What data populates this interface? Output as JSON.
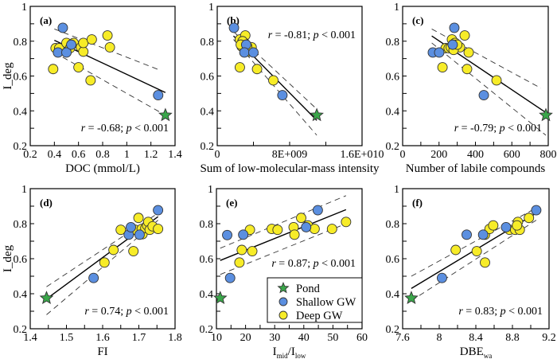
{
  "colors": {
    "pond": "#3aa64a",
    "shallow": "#5b8fe0",
    "deep": "#f7ec28"
  },
  "legend": {
    "placement": "inside panel (e), bottom-right",
    "entries": [
      {
        "key": "pond",
        "label": "Pond",
        "marker": "star"
      },
      {
        "key": "shallow",
        "label": "Shallow GW",
        "marker": "circle"
      },
      {
        "key": "deep",
        "label": "Deep GW",
        "marker": "circle"
      }
    ]
  },
  "chart_data": [
    {
      "type": "scatter",
      "panel_label": "(a)",
      "ylabel": "I_deg",
      "xlabel": "DOC (mmol/L)",
      "xlim": [
        0.2,
        1.4
      ],
      "ylim": [
        0.2,
        1.0
      ],
      "xticks": [
        0.2,
        0.4,
        0.6,
        0.8,
        1,
        1.2,
        1.4
      ],
      "xtick_labels": [
        "0.2",
        "0.4",
        "0.6",
        "0.8",
        "1",
        "1.2",
        "1.4"
      ],
      "yticks": [
        0.2,
        0.4,
        0.6,
        0.8,
        1
      ],
      "ytick_labels": [
        "0.2",
        "0.4",
        "0.6",
        "0.8",
        "1"
      ],
      "stat": {
        "r": "-0.68",
        "p": "0.001",
        "placement": "bottom-right"
      },
      "fit": {
        "x": [
          0.4,
          1.32
        ],
        "y": [
          0.805,
          0.505
        ]
      },
      "ci_upper": {
        "x": [
          0.4,
          1.27
        ],
        "y": [
          0.87,
          0.635
        ]
      },
      "ci_lower": {
        "x": [
          0.4,
          1.32
        ],
        "y": [
          0.735,
          0.375
        ]
      },
      "series": [
        {
          "name": "Pond",
          "key": "pond",
          "points": [
            [
              1.32,
              0.375
            ]
          ]
        },
        {
          "name": "Shallow GW",
          "key": "shallow",
          "points": [
            [
              0.47,
              0.877
            ],
            [
              0.43,
              0.735
            ],
            [
              0.5,
              0.735
            ],
            [
              0.54,
              0.78
            ],
            [
              1.26,
              0.49
            ]
          ]
        },
        {
          "name": "Deep GW",
          "key": "deep",
          "points": [
            [
              0.39,
              0.64
            ],
            [
              0.41,
              0.76
            ],
            [
              0.44,
              0.76
            ],
            [
              0.5,
              0.79
            ],
            [
              0.53,
              0.76
            ],
            [
              0.56,
              0.79
            ],
            [
              0.6,
              0.65
            ],
            [
              0.62,
              0.765
            ],
            [
              0.64,
              0.74
            ],
            [
              0.64,
              0.79
            ],
            [
              0.7,
              0.575
            ],
            [
              0.71,
              0.81
            ],
            [
              0.84,
              0.833
            ],
            [
              0.86,
              0.765
            ]
          ]
        }
      ]
    },
    {
      "type": "scatter",
      "panel_label": "(b)",
      "ylabel": "",
      "xlabel": "Sum of low-molecular-mass intensity",
      "xlim": [
        0,
        16000000000
      ],
      "ylim": [
        0.2,
        1.0
      ],
      "xticks": [
        0,
        4000000000,
        8000000000,
        12000000000,
        16000000000
      ],
      "xtick_labels": [
        "0",
        "",
        "8E+009",
        "",
        "1.6E+010"
      ],
      "yticks": [
        0.2,
        0.4,
        0.6,
        0.8,
        1
      ],
      "ytick_labels": [
        "0.2",
        "0.4",
        "0.6",
        "0.8",
        "1"
      ],
      "stat": {
        "r": "-0.81",
        "p": "0.001",
        "placement": "top-right"
      },
      "fit": {
        "x": [
          1800000000,
          11000000000
        ],
        "y": [
          0.83,
          0.345
        ]
      },
      "ci_upper": {
        "x": [
          1800000000,
          11000000000
        ],
        "y": [
          0.855,
          0.41
        ]
      },
      "ci_lower": {
        "x": [
          1800000000,
          11000000000
        ],
        "y": [
          0.81,
          0.26
        ]
      },
      "series": [
        {
          "name": "Pond",
          "key": "pond",
          "points": [
            [
              11000000000,
              0.375
            ]
          ]
        },
        {
          "name": "Shallow GW",
          "key": "shallow",
          "points": [
            [
              1850000000,
              0.877
            ],
            [
              3200000000,
              0.78
            ],
            [
              3000000000,
              0.735
            ],
            [
              4000000000,
              0.735
            ],
            [
              7200000000,
              0.49
            ]
          ]
        },
        {
          "name": "Deep GW",
          "key": "deep",
          "points": [
            [
              2500000000,
              0.81
            ],
            [
              3100000000,
              0.833
            ],
            [
              2700000000,
              0.77
            ],
            [
              3000000000,
              0.79
            ],
            [
              3200000000,
              0.76
            ],
            [
              3400000000,
              0.75
            ],
            [
              3800000000,
              0.765
            ],
            [
              2500000000,
              0.65
            ],
            [
              4400000000,
              0.64
            ],
            [
              6200000000,
              0.575
            ],
            [
              2800000000,
              0.8
            ],
            [
              3500000000,
              0.74
            ],
            [
              2600000000,
              0.78
            ],
            [
              3300000000,
              0.77
            ]
          ]
        }
      ]
    },
    {
      "type": "scatter",
      "panel_label": "(c)",
      "ylabel": "",
      "xlabel": "Number of labile compounds",
      "xlim": [
        0,
        800
      ],
      "ylim": [
        0.2,
        1.0
      ],
      "xticks": [
        0,
        100,
        200,
        300,
        400,
        500,
        600,
        700,
        800
      ],
      "xtick_labels": [
        "0",
        "",
        "200",
        "",
        "400",
        "",
        "600",
        "",
        "800"
      ],
      "yticks": [
        0.2,
        0.4,
        0.6,
        0.8,
        1
      ],
      "ytick_labels": [
        "0.2",
        "0.4",
        "0.6",
        "0.8",
        "1"
      ],
      "stat": {
        "r": "-0.79",
        "p": "0.001",
        "placement": "bottom-right"
      },
      "fit": {
        "x": [
          160,
          787
        ],
        "y": [
          0.83,
          0.39
        ]
      },
      "ci_upper": {
        "x": [
          160,
          760
        ],
        "y": [
          0.87,
          0.53
        ]
      },
      "ci_lower": {
        "x": [
          160,
          787
        ],
        "y": [
          0.79,
          0.26
        ]
      },
      "series": [
        {
          "name": "Pond",
          "key": "pond",
          "points": [
            [
              787,
              0.375
            ]
          ]
        },
        {
          "name": "Shallow GW",
          "key": "shallow",
          "points": [
            [
              284,
              0.877
            ],
            [
              166,
              0.735
            ],
            [
              201,
              0.735
            ],
            [
              275,
              0.78
            ],
            [
              446,
              0.49
            ]
          ]
        },
        {
          "name": "Deep GW",
          "key": "deep",
          "points": [
            [
              271,
              0.81
            ],
            [
              341,
              0.833
            ],
            [
              219,
              0.65
            ],
            [
              354,
              0.64
            ],
            [
              363,
              0.735
            ],
            [
              516,
              0.575
            ],
            [
              236,
              0.76
            ],
            [
              253,
              0.76
            ],
            [
              288,
              0.79
            ],
            [
              297,
              0.77
            ],
            [
              315,
              0.765
            ],
            [
              265,
              0.765
            ],
            [
              280,
              0.75
            ],
            [
              300,
              0.78
            ]
          ]
        }
      ]
    },
    {
      "type": "scatter",
      "panel_label": "(d)",
      "ylabel": "I_deg",
      "xlabel": "FI",
      "xlim": [
        1.4,
        1.8
      ],
      "ylim": [
        0.2,
        1.0
      ],
      "xticks": [
        1.4,
        1.45,
        1.5,
        1.55,
        1.6,
        1.65,
        1.7,
        1.75,
        1.8
      ],
      "xtick_labels": [
        "1.4",
        "",
        "1.5",
        "",
        "1.6",
        "",
        "1.7",
        "",
        "1.8"
      ],
      "yticks": [
        0.2,
        0.4,
        0.6,
        0.8,
        1
      ],
      "ytick_labels": [
        "0.2",
        "0.4",
        "0.6",
        "0.8",
        "1"
      ],
      "stat": {
        "r": "0.74",
        "p": "0.001",
        "placement": "bottom-right"
      },
      "fit": {
        "x": [
          1.445,
          1.753
        ],
        "y": [
          0.37,
          0.84
        ]
      },
      "ci_upper": {
        "x": [
          1.445,
          1.753
        ],
        "y": [
          0.44,
          0.86
        ]
      },
      "ci_lower": {
        "x": [
          1.445,
          1.753
        ],
        "y": [
          0.28,
          0.82
        ]
      },
      "series": [
        {
          "name": "Pond",
          "key": "pond",
          "points": [
            [
              1.445,
              0.375
            ]
          ]
        },
        {
          "name": "Shallow GW",
          "key": "shallow",
          "points": [
            [
              1.575,
              0.49
            ],
            [
              1.672,
              0.737
            ],
            [
              1.678,
              0.78
            ],
            [
              1.702,
              0.737
            ],
            [
              1.753,
              0.877
            ]
          ]
        },
        {
          "name": "Deep GW",
          "key": "deep",
          "points": [
            [
              1.605,
              0.578
            ],
            [
              1.63,
              0.65
            ],
            [
              1.65,
              0.765
            ],
            [
              1.685,
              0.643
            ],
            [
              1.69,
              0.765
            ],
            [
              1.699,
              0.833
            ],
            [
              1.708,
              0.77
            ],
            [
              1.71,
              0.74
            ],
            [
              1.718,
              0.775
            ],
            [
              1.723,
              0.79
            ],
            [
              1.726,
              0.81
            ],
            [
              1.73,
              0.765
            ],
            [
              1.738,
              0.785
            ],
            [
              1.753,
              0.77
            ]
          ]
        }
      ]
    },
    {
      "type": "scatter",
      "panel_label": "(e)",
      "ylabel": "",
      "xlabel": "I_mid/I_low",
      "xlabel_parts": {
        "a": "I",
        "a_sub": "mid",
        "sep": "/",
        "b": "I",
        "b_sub": "low"
      },
      "xlim": [
        10,
        60
      ],
      "ylim": [
        0.2,
        1.0
      ],
      "xticks": [
        10,
        15,
        20,
        25,
        30,
        35,
        40,
        45,
        50,
        55,
        60
      ],
      "xtick_labels": [
        "10",
        "",
        "20",
        "",
        "30",
        "",
        "40",
        "",
        "50",
        "",
        "60"
      ],
      "yticks": [
        0.2,
        0.4,
        0.6,
        0.8,
        1
      ],
      "ytick_labels": [
        "0.2",
        "0.4",
        "0.6",
        "0.8",
        "1"
      ],
      "stat": {
        "r": "0.87",
        "p": "0.001",
        "placement": "middle-right"
      },
      "fit": {
        "x": [
          11.3,
          54.5
        ],
        "y": [
          0.59,
          0.88
        ]
      },
      "ci_upper": {
        "x": [
          11.3,
          54.5
        ],
        "y": [
          0.66,
          0.96
        ]
      },
      "ci_lower": {
        "x": [
          11.3,
          54.5
        ],
        "y": [
          0.51,
          0.8
        ]
      },
      "series": [
        {
          "name": "Pond",
          "key": "pond",
          "points": [
            [
              11.3,
              0.375
            ]
          ]
        },
        {
          "name": "Shallow GW",
          "key": "shallow",
          "points": [
            [
              13.7,
              0.735
            ],
            [
              14.7,
              0.49
            ],
            [
              19.2,
              0.737
            ],
            [
              40.8,
              0.78
            ],
            [
              44.8,
              0.877
            ]
          ]
        },
        {
          "name": "Deep GW",
          "key": "deep",
          "points": [
            [
              17.9,
              0.578
            ],
            [
              18.7,
              0.65
            ],
            [
              21.5,
              0.765
            ],
            [
              22.3,
              0.643
            ],
            [
              29.0,
              0.77
            ],
            [
              31.0,
              0.765
            ],
            [
              36.5,
              0.78
            ],
            [
              36.8,
              0.737
            ],
            [
              39.1,
              0.833
            ],
            [
              41.4,
              0.79
            ],
            [
              43.7,
              0.77
            ],
            [
              49.7,
              0.77
            ],
            [
              54.5,
              0.81
            ]
          ]
        }
      ]
    },
    {
      "type": "scatter",
      "panel_label": "(f)",
      "ylabel": "",
      "xlabel": "DBE_wa",
      "xlabel_parts": {
        "a": "DBE",
        "a_sub": "wa"
      },
      "xlim": [
        7.6,
        9.2
      ],
      "ylim": [
        0.2,
        1.0
      ],
      "xticks": [
        7.6,
        7.8,
        8.0,
        8.2,
        8.4,
        8.6,
        8.8,
        9.0,
        9.2
      ],
      "xtick_labels": [
        "7.6",
        "",
        "8",
        "",
        "8.4",
        "",
        "8.8",
        "",
        "9.2"
      ],
      "yticks": [
        0.2,
        0.4,
        0.6,
        0.8,
        1
      ],
      "ytick_labels": [
        "0.2",
        "0.4",
        "0.6",
        "0.8",
        "1"
      ],
      "stat": {
        "r": "0.83",
        "p": "0.001",
        "placement": "bottom-right"
      },
      "fit": {
        "x": [
          7.695,
          9.06
        ],
        "y": [
          0.43,
          0.86
        ]
      },
      "ci_upper": {
        "x": [
          7.695,
          9.06
        ],
        "y": [
          0.5,
          0.89
        ]
      },
      "ci_lower": {
        "x": [
          7.695,
          9.06
        ],
        "y": [
          0.36,
          0.82
        ]
      },
      "series": [
        {
          "name": "Pond",
          "key": "pond",
          "points": [
            [
              7.695,
              0.375
            ]
          ]
        },
        {
          "name": "Shallow GW",
          "key": "shallow",
          "points": [
            [
              8.03,
              0.49
            ],
            [
              8.3,
              0.737
            ],
            [
              8.48,
              0.737
            ],
            [
              8.73,
              0.78
            ],
            [
              9.06,
              0.877
            ]
          ]
        },
        {
          "name": "Deep GW",
          "key": "deep",
          "points": [
            [
              8.18,
              0.65
            ],
            [
              8.41,
              0.643
            ],
            [
              8.5,
              0.737
            ],
            [
              8.5,
              0.578
            ],
            [
              8.55,
              0.77
            ],
            [
              8.59,
              0.79
            ],
            [
              8.77,
              0.765
            ],
            [
              8.83,
              0.765
            ],
            [
              8.86,
              0.81
            ],
            [
              8.88,
              0.765
            ],
            [
              8.98,
              0.833
            ],
            [
              8.85,
              0.79
            ]
          ]
        }
      ]
    }
  ]
}
